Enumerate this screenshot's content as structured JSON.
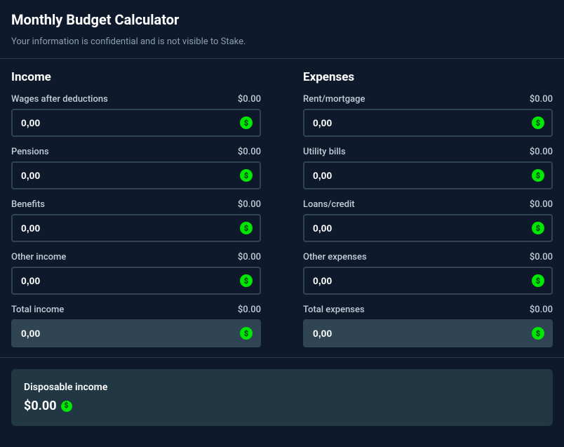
{
  "colors": {
    "background": "#0e1a2b",
    "border": "#2f4553",
    "text_muted": "#8b9db3",
    "text_label": "#c2cdda",
    "accent_green": "#00e701",
    "accent_green_dark": "#05421c",
    "box_bg": "#213743",
    "divider": "#2a3a4d"
  },
  "title": "Monthly Budget Calculator",
  "subtitle": "Your information is confidential and is not visible to Stake.",
  "income": {
    "heading": "Income",
    "wages": {
      "label": "Wages after deductions",
      "display": "$0.00",
      "input": "0,00"
    },
    "pensions": {
      "label": "Pensions",
      "display": "$0.00",
      "input": "0,00"
    },
    "benefits": {
      "label": "Benefits",
      "display": "$0.00",
      "input": "0,00"
    },
    "other": {
      "label": "Other income",
      "display": "$0.00",
      "input": "0,00"
    },
    "total": {
      "label": "Total income",
      "display": "$0.00",
      "input": "0,00"
    }
  },
  "expenses": {
    "heading": "Expenses",
    "rent": {
      "label": "Rent/mortgage",
      "display": "$0.00",
      "input": "0,00"
    },
    "utility": {
      "label": "Utility bills",
      "display": "$0.00",
      "input": "0,00"
    },
    "loans": {
      "label": "Loans/credit",
      "display": "$0.00",
      "input": "0,00"
    },
    "other": {
      "label": "Other expenses",
      "display": "$0.00",
      "input": "0,00"
    },
    "total": {
      "label": "Total expenses",
      "display": "$0.00",
      "input": "0,00"
    }
  },
  "disposable": {
    "label": "Disposable income",
    "value": "$0.00"
  }
}
